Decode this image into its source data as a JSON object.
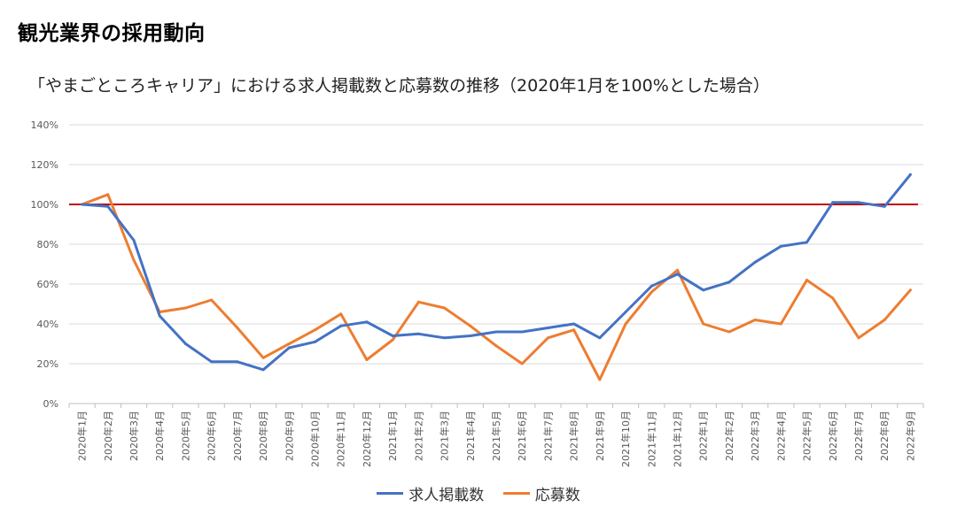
{
  "page_title": "観光業界の採用動向",
  "chart_data": {
    "type": "line",
    "title": "「やまごところキャリア」における求人掲載数と応募数の推移（2020年1月を100%とした場合）",
    "xlabel": "",
    "ylabel": "",
    "ylim": [
      0,
      140
    ],
    "y_ticks": [
      "0%",
      "20%",
      "40%",
      "60%",
      "80%",
      "100%",
      "120%",
      "140%"
    ],
    "categories": [
      "2020年1月",
      "2020年2月",
      "2020年3月",
      "2020年4月",
      "2020年5月",
      "2020年6月",
      "2020年7月",
      "2020年8月",
      "2020年9月",
      "2020年10月",
      "2020年11月",
      "2020年12月",
      "2021年1月",
      "2021年2月",
      "2021年3月",
      "2021年4月",
      "2021年5月",
      "2021年6月",
      "2021年7月",
      "2021年8月",
      "2021年9月",
      "2021年10月",
      "2021年11月",
      "2021年12月",
      "2022年1月",
      "2022年2月",
      "2022年3月",
      "2022年4月",
      "2022年5月",
      "2022年6月",
      "2022年7月",
      "2022年8月",
      "2022年9月"
    ],
    "series": [
      {
        "name": "求人掲載数",
        "color": "#4472c4",
        "values": [
          100,
          99,
          82,
          44,
          30,
          21,
          21,
          17,
          28,
          31,
          39,
          41,
          34,
          35,
          33,
          34,
          36,
          36,
          38,
          40,
          33,
          46,
          59,
          65,
          57,
          61,
          71,
          79,
          81,
          101,
          101,
          99,
          115
        ]
      },
      {
        "name": "応募数",
        "color": "#ed7d31",
        "values": [
          100,
          105,
          72,
          46,
          48,
          52,
          38,
          23,
          30,
          37,
          45,
          22,
          32,
          51,
          48,
          39,
          29,
          20,
          33,
          37,
          12,
          40,
          56,
          67,
          40,
          36,
          42,
          40,
          62,
          53,
          33,
          42,
          57
        ]
      }
    ],
    "reference_line": {
      "value": 100,
      "color": "#c00000"
    },
    "grid": true,
    "legend_position": "bottom"
  }
}
